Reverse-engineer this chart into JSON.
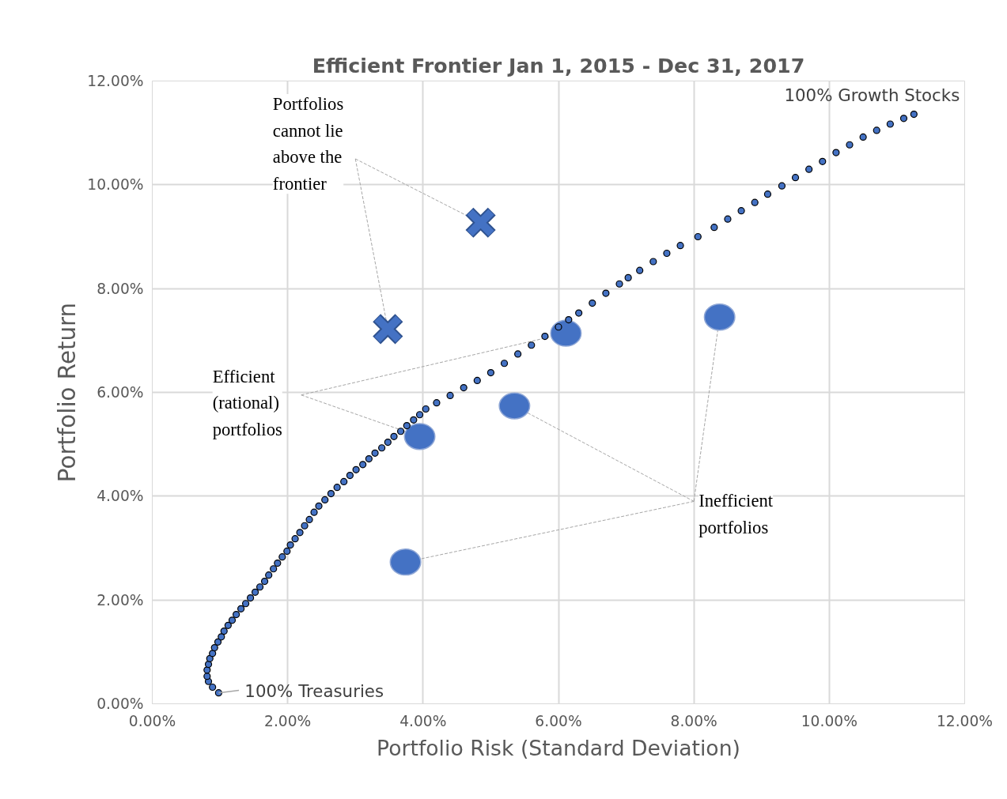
{
  "chart_data": {
    "type": "scatter",
    "title": "Efficient Frontier Jan 1, 2015 - Dec 31, 2017",
    "xlabel": "Portfolio Risk (Standard Deviation)",
    "ylabel": "Portfolio Return",
    "xlim": [
      0,
      12
    ],
    "ylim": [
      0,
      12
    ],
    "xticks": [
      {
        "value": 0,
        "label": "0.00%"
      },
      {
        "value": 2,
        "label": "2.00%"
      },
      {
        "value": 4,
        "label": "4.00%"
      },
      {
        "value": 6,
        "label": "6.00%"
      },
      {
        "value": 8,
        "label": "8.00%"
      },
      {
        "value": 10,
        "label": "10.00%"
      },
      {
        "value": 12,
        "label": "12.00%"
      }
    ],
    "yticks": [
      {
        "value": 0,
        "label": "0.00%"
      },
      {
        "value": 2,
        "label": "2.00%"
      },
      {
        "value": 4,
        "label": "4.00%"
      },
      {
        "value": 6,
        "label": "6.00%"
      },
      {
        "value": 8,
        "label": "8.00%"
      },
      {
        "value": 10,
        "label": "10.00%"
      },
      {
        "value": 12,
        "label": "12.00%"
      }
    ],
    "grid": true,
    "series": [
      {
        "color": "#4472c4",
        "marker": "circle",
        "x": [
          0.98,
          0.89,
          0.83,
          0.81,
          0.81,
          0.83,
          0.85,
          0.89,
          0.92,
          0.97,
          1.02,
          1.06,
          1.12,
          1.18,
          1.24,
          1.31,
          1.38,
          1.45,
          1.52,
          1.59,
          1.66,
          1.72,
          1.79,
          1.85,
          1.92,
          1.99,
          2.04,
          2.11,
          2.18,
          2.25,
          2.32,
          2.39,
          2.46,
          2.55,
          2.64,
          2.73,
          2.83,
          2.92,
          3.01,
          3.11,
          3.2,
          3.29,
          3.39,
          3.48,
          3.57,
          3.67,
          3.76,
          3.86,
          3.95,
          4.04,
          4.2,
          4.4,
          4.6,
          4.8,
          5.0,
          5.2,
          5.4,
          5.6,
          5.8,
          6.0,
          6.15,
          6.3,
          6.5,
          6.7,
          6.9,
          7.03,
          7.2,
          7.4,
          7.6,
          7.8,
          8.06,
          8.3,
          8.5,
          8.7,
          8.9,
          9.09,
          9.3,
          9.5,
          9.7,
          9.9,
          10.1,
          10.3,
          10.5,
          10.7,
          10.9,
          11.1,
          11.25
        ],
        "values": [
          0.21,
          0.32,
          0.43,
          0.53,
          0.65,
          0.76,
          0.87,
          0.97,
          1.08,
          1.19,
          1.29,
          1.4,
          1.51,
          1.61,
          1.72,
          1.83,
          1.93,
          2.04,
          2.15,
          2.25,
          2.36,
          2.48,
          2.6,
          2.71,
          2.83,
          2.94,
          3.06,
          3.18,
          3.3,
          3.43,
          3.55,
          3.69,
          3.81,
          3.93,
          4.05,
          4.17,
          4.28,
          4.4,
          4.51,
          4.61,
          4.72,
          4.83,
          4.93,
          5.04,
          5.15,
          5.25,
          5.36,
          5.47,
          5.57,
          5.68,
          5.8,
          5.94,
          6.09,
          6.23,
          6.38,
          6.56,
          6.74,
          6.91,
          7.08,
          7.26,
          7.4,
          7.53,
          7.72,
          7.91,
          8.09,
          8.21,
          8.35,
          8.52,
          8.68,
          8.83,
          9.0,
          9.18,
          9.34,
          9.5,
          9.66,
          9.82,
          9.98,
          10.14,
          10.3,
          10.45,
          10.62,
          10.77,
          10.92,
          11.05,
          11.17,
          11.28,
          11.36
        ]
      },
      {
        "color": "#4472c4",
        "marker": "cross",
        "x": [
          4.85,
          3.48
        ],
        "values": [
          9.27,
          7.22
        ]
      },
      {
        "color": "#4472c4",
        "marker": "circle",
        "x": [
          6.11,
          3.95
        ],
        "values": [
          7.14,
          5.15
        ]
      },
      {
        "color": "#4472c4",
        "marker": "circle",
        "x": [
          8.38,
          5.35,
          3.74
        ],
        "values": [
          7.45,
          5.74,
          2.73
        ]
      }
    ],
    "annotations": [
      {
        "text": "100% Growth Stocks",
        "x": 11.25,
        "y": 11.36
      },
      {
        "text": "100% Treasuries",
        "x": 0.98,
        "y": 0.21
      },
      {
        "text": "Portfolios\ncannot lie\nabove the\nfrontier",
        "x": 4.85,
        "y": 9.27
      },
      {
        "text": "Efficient\n(rational)\nportfolios",
        "x": 6.11,
        "y": 7.14
      },
      {
        "text": "Inefficient\nportfolios",
        "x": 8.38,
        "y": 7.45
      }
    ]
  }
}
